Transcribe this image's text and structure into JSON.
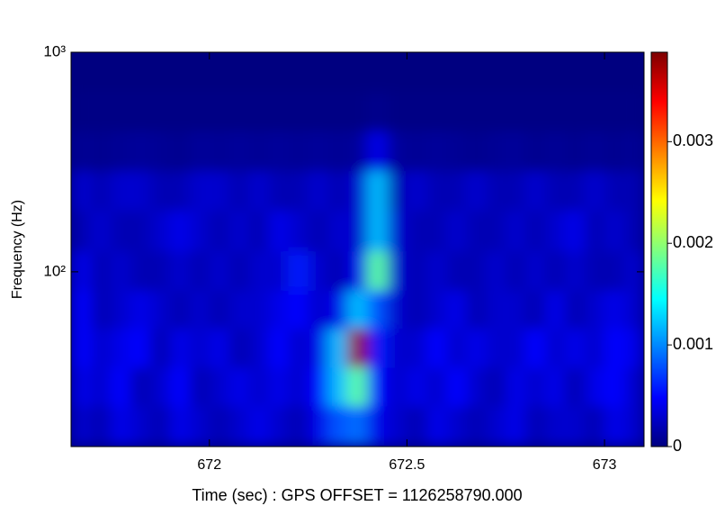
{
  "chart_data": {
    "type": "heatmap",
    "xlabel": "Time (sec) : GPS OFFSET = 1126258790.000",
    "ylabel": "Frequency (Hz)",
    "xlim": [
      671.65,
      673.1
    ],
    "xticks": [
      672,
      672.5,
      673
    ],
    "ylim": [
      16,
      1000
    ],
    "log_y": true,
    "yticks": [
      {
        "value": 100,
        "label": "10²"
      },
      {
        "value": 1000,
        "label": "10³"
      }
    ],
    "clim": [
      0,
      0.00388
    ],
    "cticks": [
      0,
      0.001,
      0.002,
      0.003
    ],
    "colormap": "jet",
    "x": [
      671.675,
      671.725,
      671.775,
      671.825,
      671.875,
      671.925,
      671.975,
      672.025,
      672.075,
      672.125,
      672.175,
      672.225,
      672.275,
      672.325,
      672.375,
      672.425,
      672.475,
      672.525,
      672.575,
      672.625,
      672.675,
      672.725,
      672.775,
      672.825,
      672.875,
      672.925,
      672.975,
      673.025,
      673.075
    ],
    "y": [
      20,
      30,
      45,
      68,
      100,
      155,
      235,
      355,
      540,
      815
    ],
    "z": [
      [
        0.0003,
        0.0002,
        0.0004,
        0.0003,
        0.0002,
        0.0004,
        0.0003,
        0.0002,
        0.0003,
        0.0004,
        0.0003,
        0.0002,
        0.0004,
        0.0008,
        0.0009,
        0.0004,
        0.0003,
        0.0002,
        0.0004,
        0.0003,
        0.0002,
        0.0003,
        0.0004,
        0.0002,
        0.0003,
        0.0003,
        0.0002,
        0.0004,
        0.0003
      ],
      [
        0.0004,
        0.0003,
        0.0005,
        0.0002,
        0.0003,
        0.0005,
        0.0002,
        0.0003,
        0.0004,
        0.0003,
        0.0004,
        0.0003,
        0.0005,
        0.0012,
        0.0018,
        0.0005,
        0.0003,
        0.0004,
        0.0003,
        0.0005,
        0.0003,
        0.0002,
        0.0004,
        0.0003,
        0.0004,
        0.0002,
        0.0004,
        0.0005,
        0.0003
      ],
      [
        0.0005,
        0.0003,
        0.0004,
        0.0005,
        0.0002,
        0.0004,
        0.0003,
        0.0004,
        0.0002,
        0.0003,
        0.0005,
        0.0003,
        0.0004,
        0.0012,
        0.0038,
        0.0006,
        0.0003,
        0.0003,
        0.0005,
        0.0003,
        0.0004,
        0.0003,
        0.0003,
        0.0005,
        0.0003,
        0.0004,
        0.0003,
        0.0005,
        0.0004
      ],
      [
        0.0005,
        0.0002,
        0.0003,
        0.0004,
        0.0003,
        0.0002,
        0.0003,
        0.0002,
        0.0003,
        0.0003,
        0.0004,
        0.0005,
        0.0003,
        0.0004,
        0.0012,
        0.0008,
        0.0003,
        0.0002,
        0.0003,
        0.0004,
        0.0002,
        0.0003,
        0.0003,
        0.0002,
        0.0004,
        0.0002,
        0.0003,
        0.0004,
        0.0003
      ],
      [
        0.0004,
        0.0002,
        0.0003,
        0.0002,
        0.0002,
        0.0003,
        0.0002,
        0.0003,
        0.0002,
        0.0003,
        0.0003,
        0.0006,
        0.0003,
        0.0002,
        0.0004,
        0.0018,
        0.0003,
        0.0002,
        0.0003,
        0.0002,
        0.0002,
        0.0003,
        0.0002,
        0.0003,
        0.0002,
        0.0003,
        0.0002,
        0.0002,
        0.0003
      ],
      [
        0.0002,
        0.0003,
        0.0002,
        0.0002,
        0.0003,
        0.0004,
        0.0003,
        0.0002,
        0.0003,
        0.0002,
        0.0004,
        0.0003,
        0.0002,
        0.0003,
        0.0003,
        0.0012,
        0.0003,
        0.0002,
        0.0002,
        0.0003,
        0.0002,
        0.0002,
        0.0003,
        0.0002,
        0.0003,
        0.0004,
        0.0002,
        0.0003,
        0.0002
      ],
      [
        0.0003,
        0.0002,
        0.0003,
        0.0003,
        0.0002,
        0.0002,
        0.0003,
        0.0003,
        0.0002,
        0.0003,
        0.0002,
        0.0002,
        0.0003,
        0.0002,
        0.0003,
        0.0012,
        0.0002,
        0.0003,
        0.0002,
        0.0002,
        0.0003,
        0.0002,
        0.0002,
        0.0003,
        0.0002,
        0.0002,
        0.0003,
        0.0002,
        0.0002
      ],
      [
        8e-05,
        6e-05,
        8e-05,
        0.0001,
        8e-05,
        6e-05,
        0.0001,
        8e-05,
        0.0001,
        8e-05,
        0.0001,
        8e-05,
        0.0001,
        8e-05,
        0.0001,
        0.0004,
        0.0001,
        8e-05,
        0.0001,
        8e-05,
        6e-05,
        8e-05,
        0.0001,
        6e-05,
        8e-05,
        6e-05,
        8e-05,
        6e-05,
        8e-05
      ],
      [
        2e-05,
        2e-05,
        2e-05,
        2e-05,
        2e-05,
        2e-05,
        2e-05,
        2e-05,
        2e-05,
        2e-05,
        2e-05,
        2e-05,
        2e-05,
        2e-05,
        2e-05,
        5e-05,
        2e-05,
        2e-05,
        2e-05,
        2e-05,
        2e-05,
        2e-05,
        2e-05,
        2e-05,
        2e-05,
        2e-05,
        2e-05,
        2e-05,
        2e-05
      ],
      [
        0,
        0,
        0,
        0,
        0,
        0,
        0,
        0,
        0,
        0,
        0,
        0,
        0,
        0,
        0,
        0,
        0,
        0,
        0,
        0,
        0,
        0,
        0,
        0,
        0,
        0,
        0,
        0,
        0
      ]
    ]
  }
}
